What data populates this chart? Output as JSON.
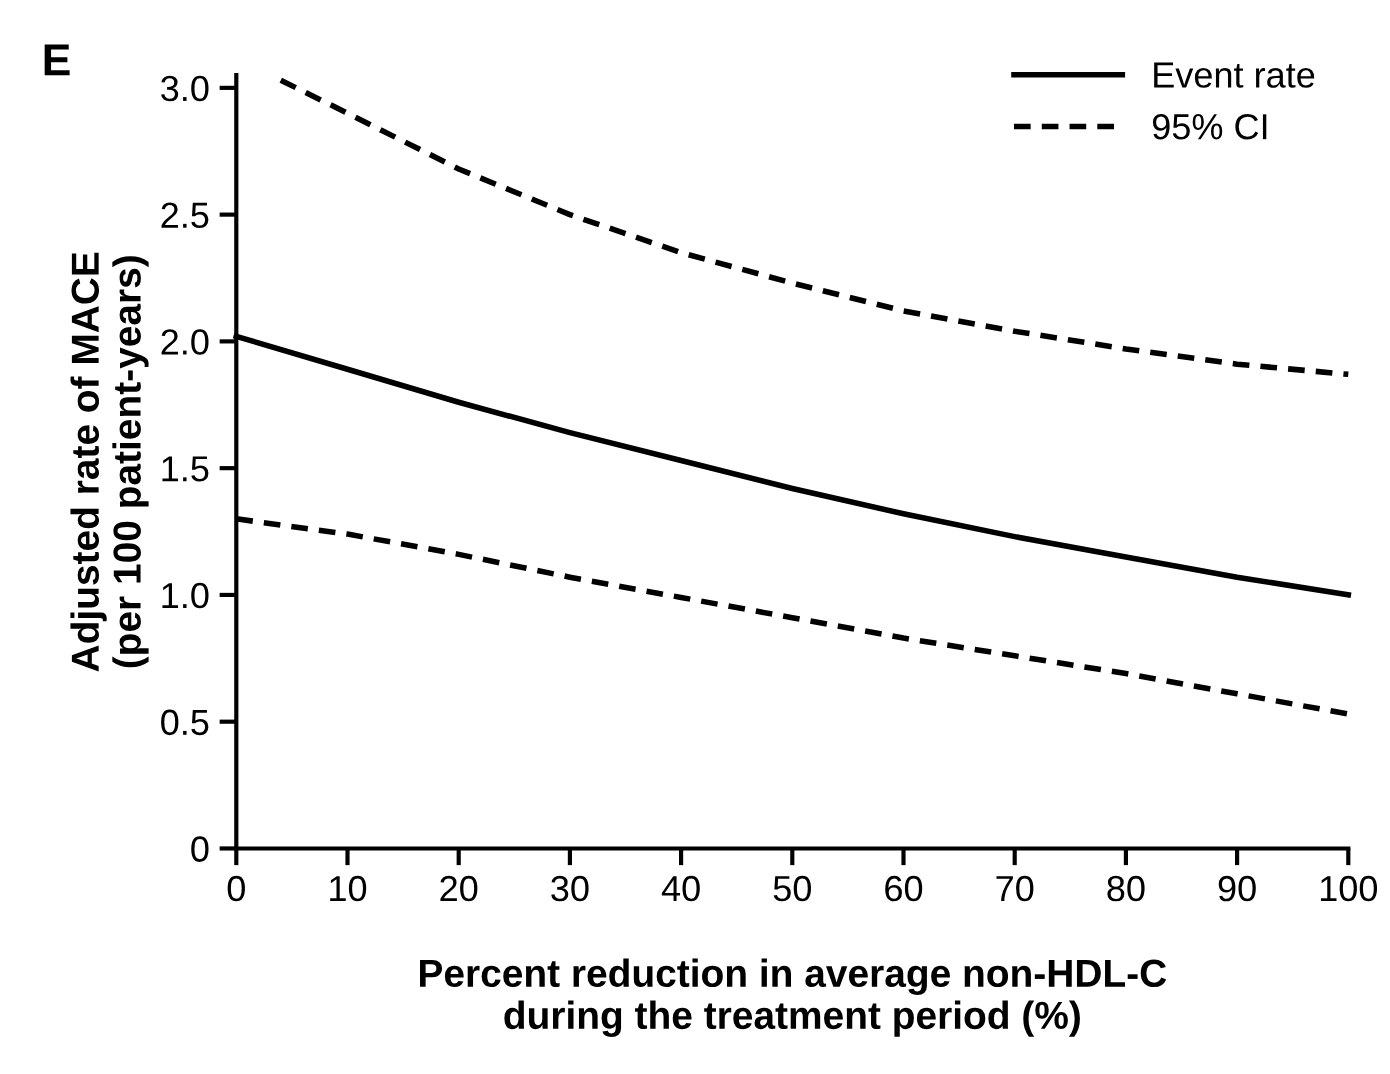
{
  "chart_data": {
    "type": "line",
    "xlabel": "Percent reduction in average non-HDL-C\nduring the treatment period (%)",
    "ylabel": "Adjusted rate of MACE\n(per 100 patient-years)",
    "annotations": [
      "E"
    ],
    "xlim": [
      0,
      100
    ],
    "xticks": [
      0,
      10,
      20,
      30,
      40,
      50,
      60,
      70,
      80,
      90,
      100
    ],
    "ylim": [
      0,
      3.05
    ],
    "yticks": [
      {
        "value": 0,
        "label": "0"
      },
      {
        "value": 0.5,
        "label": "0.5"
      },
      {
        "value": 1.0,
        "label": "1.0"
      },
      {
        "value": 1.5,
        "label": "1.5"
      },
      {
        "value": 2.0,
        "label": "2.0"
      },
      {
        "value": 2.5,
        "label": "2.5"
      },
      {
        "value": 3.0,
        "label": "3.0"
      }
    ],
    "legend": "top right",
    "grid": false,
    "series": [
      {
        "name": "Event rate",
        "color": "#000000",
        "line_style": "solid",
        "x": [
          0,
          10,
          20,
          30,
          40,
          50,
          60,
          70,
          80,
          90,
          100
        ],
        "values": [
          2.02,
          1.89,
          1.76,
          1.64,
          1.53,
          1.42,
          1.32,
          1.23,
          1.15,
          1.07,
          1.0
        ]
      },
      {
        "name": "95% CI",
        "color": "#000000",
        "line_style": "dashed",
        "x": [
          4,
          10,
          20,
          30,
          40,
          50,
          60,
          70,
          80,
          90,
          100
        ],
        "values": [
          3.03,
          2.9,
          2.68,
          2.5,
          2.35,
          2.23,
          2.12,
          2.04,
          1.97,
          1.91,
          1.87
        ]
      },
      {
        "color": "#000000",
        "line_style": "dashed",
        "x": [
          0,
          10,
          20,
          30,
          40,
          50,
          60,
          70,
          80,
          90,
          100
        ],
        "values": [
          1.3,
          1.24,
          1.16,
          1.07,
          0.99,
          0.91,
          0.83,
          0.76,
          0.69,
          0.61,
          0.53
        ]
      }
    ]
  }
}
